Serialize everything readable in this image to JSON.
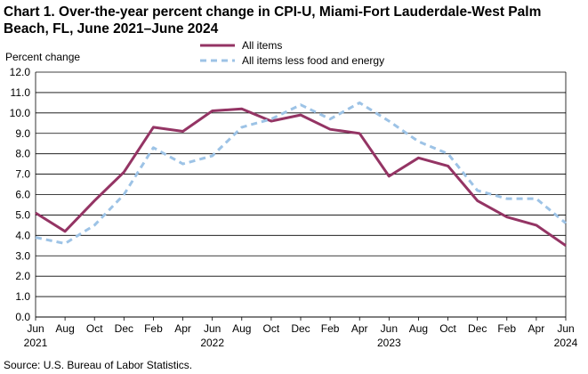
{
  "chart_data": {
    "type": "line",
    "title": "Chart 1. Over-the-year percent change in CPI-U, Miami-Fort Lauderdale-West Palm Beach, FL, June 2021–June  2024",
    "ylabel": "Percent change",
    "source": "Source: U.S. Bureau  of Labor Statistics.",
    "ylim": [
      0,
      12
    ],
    "yticks": [
      "0.0",
      "1.0",
      "2.0",
      "3.0",
      "4.0",
      "5.0",
      "6.0",
      "7.0",
      "8.0",
      "9.0",
      "10.0",
      "11.0",
      "12.0"
    ],
    "xtick_labels": [
      {
        "month": "Jun",
        "year": "2021"
      },
      {
        "month": "Aug",
        "year": ""
      },
      {
        "month": "Oct",
        "year": ""
      },
      {
        "month": "Dec",
        "year": ""
      },
      {
        "month": "Feb",
        "year": ""
      },
      {
        "month": "Apr",
        "year": ""
      },
      {
        "month": "Jun",
        "year": "2022"
      },
      {
        "month": "Aug",
        "year": ""
      },
      {
        "month": "Oct",
        "year": ""
      },
      {
        "month": "Dec",
        "year": ""
      },
      {
        "month": "Feb",
        "year": ""
      },
      {
        "month": "Apr",
        "year": ""
      },
      {
        "month": "Jun",
        "year": "2023"
      },
      {
        "month": "Aug",
        "year": ""
      },
      {
        "month": "Oct",
        "year": ""
      },
      {
        "month": "Dec",
        "year": ""
      },
      {
        "month": "Feb",
        "year": ""
      },
      {
        "month": "Apr",
        "year": ""
      },
      {
        "month": "Jun",
        "year": "2024"
      }
    ],
    "grid": true,
    "legend": "top-center",
    "series": [
      {
        "name": "All items",
        "color": "#943464",
        "style": "solid",
        "values": [
          5.1,
          4.2,
          5.7,
          7.1,
          9.3,
          9.1,
          10.1,
          10.2,
          9.6,
          9.9,
          9.2,
          9.0,
          6.9,
          7.8,
          7.4,
          5.7,
          4.9,
          4.5,
          3.5
        ]
      },
      {
        "name": "All items less food and energy",
        "color": "#9dc3e6",
        "style": "dashed",
        "values": [
          3.9,
          3.6,
          4.5,
          6.0,
          8.3,
          7.5,
          7.9,
          9.3,
          9.7,
          10.4,
          9.7,
          10.5,
          9.6,
          8.6,
          8.0,
          6.2,
          5.8,
          5.8,
          4.6
        ]
      }
    ]
  }
}
